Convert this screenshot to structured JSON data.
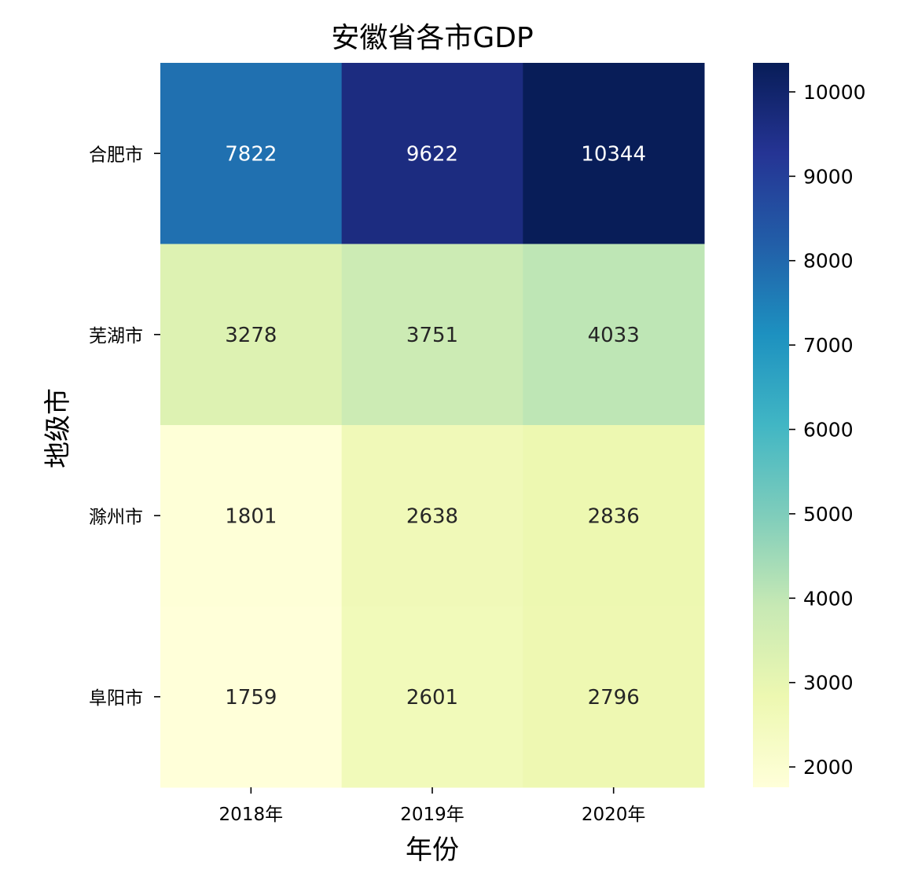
{
  "chart_data": {
    "type": "heatmap",
    "title": "安徽省各市GDP",
    "xlabel": "年份",
    "ylabel": "地级市",
    "x_categories": [
      "2018年",
      "2019年",
      "2020年"
    ],
    "y_categories": [
      "合肥市",
      "芜湖市",
      "滁州市",
      "阜阳市"
    ],
    "values": [
      [
        7822,
        9622,
        10344
      ],
      [
        3278,
        3751,
        4033
      ],
      [
        1801,
        2638,
        2836
      ],
      [
        1759,
        2601,
        2796
      ]
    ],
    "colormap": "YlGnBu",
    "colorbar": {
      "vmin": 1759,
      "vmax": 10344,
      "ticks": [
        2000,
        3000,
        4000,
        5000,
        6000,
        7000,
        8000,
        9000,
        10000
      ]
    },
    "annotations": true
  }
}
